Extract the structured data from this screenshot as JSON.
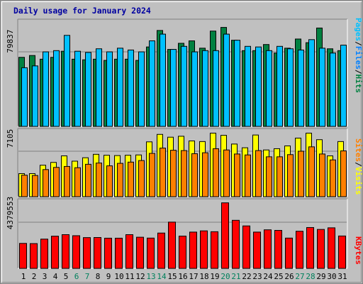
{
  "title": "Daily usage for January 2024",
  "colors": {
    "hits": "#008040",
    "files": "#00c0ff",
    "pages": "#00e0ff",
    "visits": "#ffff00",
    "sites": "#ff8000",
    "kbytes": "#ff0000",
    "weekend_label": "#00805c",
    "weekday_label": "#000000",
    "title": "#0000a0"
  },
  "chart_data": [
    {
      "type": "bar",
      "panel": "hits-files-pages",
      "y_max_label": "79837",
      "legend": [
        {
          "text": "Pages",
          "color": "#00c0ff"
        },
        {
          "text": "Files",
          "color": "#0080ff"
        },
        {
          "text": "Hits",
          "color": "#008040"
        }
      ],
      "categories": [
        "1",
        "2",
        "3",
        "4",
        "5",
        "6",
        "7",
        "8",
        "9",
        "10",
        "11",
        "12",
        "13",
        "14",
        "15",
        "16",
        "17",
        "18",
        "19",
        "20",
        "21",
        "22",
        "23",
        "24",
        "25",
        "26",
        "27",
        "28",
        "29",
        "30",
        "31"
      ],
      "series": [
        {
          "name": "Hits",
          "values": [
            56500,
            58000,
            55000,
            56500,
            61500,
            55000,
            54500,
            55000,
            54000,
            55000,
            55000,
            54000,
            65000,
            78500,
            63000,
            68000,
            70000,
            64000,
            78000,
            81000,
            70500,
            62000,
            62000,
            67000,
            60000,
            64000,
            71500,
            68500,
            80500,
            63500,
            62000
          ]
        },
        {
          "name": "Files",
          "values": [
            48000,
            49500,
            61000,
            62000,
            74500,
            61500,
            60500,
            63500,
            61000,
            64000,
            62500,
            61000,
            70000,
            75500,
            63000,
            65500,
            61000,
            62000,
            62000,
            75500,
            70500,
            65500,
            65000,
            62000,
            65500,
            63500,
            62500,
            71000,
            64000,
            60000,
            66500
          ]
        }
      ]
    },
    {
      "type": "bar",
      "panel": "visits-sites",
      "y_max_label": "7105",
      "legend": [
        {
          "text": "Sites",
          "color": "#ff8000"
        },
        {
          "text": "Visits",
          "color": "#ffff00"
        }
      ],
      "categories": [
        "1",
        "2",
        "3",
        "4",
        "5",
        "6",
        "7",
        "8",
        "9",
        "10",
        "11",
        "12",
        "13",
        "14",
        "15",
        "16",
        "17",
        "18",
        "19",
        "20",
        "21",
        "22",
        "23",
        "24",
        "25",
        "26",
        "27",
        "28",
        "29",
        "30",
        "31"
      ],
      "series": [
        {
          "name": "Visits",
          "values": [
            3700,
            3700,
            5050,
            5500,
            6550,
            5700,
            6250,
            6800,
            6650,
            6600,
            6650,
            6700,
            8800,
            10000,
            9550,
            9700,
            8950,
            8850,
            10200,
            9850,
            8450,
            7850,
            9900,
            7500,
            7700,
            8150,
            9400,
            10200,
            9150,
            6550,
            8850
          ]
        },
        {
          "name": "Sites",
          "values": [
            3450,
            3400,
            4350,
            4700,
            4850,
            4650,
            5200,
            5400,
            4950,
            5350,
            5550,
            5800,
            6950,
            7800,
            7450,
            7400,
            6900,
            7050,
            7700,
            7500,
            6850,
            6700,
            7400,
            6400,
            6400,
            6750,
            7300,
            8000,
            6850,
            5900,
            7350
          ]
        }
      ]
    },
    {
      "type": "bar",
      "panel": "kbytes",
      "y_max_label": "4379553",
      "legend": [
        {
          "text": "KBytes",
          "color": "#ff0000"
        }
      ],
      "categories": [
        "1",
        "2",
        "3",
        "4",
        "5",
        "6",
        "7",
        "8",
        "9",
        "10",
        "11",
        "12",
        "13",
        "14",
        "15",
        "16",
        "17",
        "18",
        "19",
        "20",
        "21",
        "22",
        "23",
        "24",
        "25",
        "26",
        "27",
        "28",
        "29",
        "30",
        "31"
      ],
      "series": [
        {
          "name": "KBytes",
          "values": [
            2630000,
            2610000,
            3080000,
            3390000,
            3550000,
            3440000,
            3240000,
            3250000,
            3180000,
            3180000,
            3550000,
            3280000,
            3190000,
            3720000,
            4870000,
            3400000,
            3820000,
            3950000,
            3860000,
            6900000,
            5060000,
            4470000,
            3820000,
            4060000,
            4000000,
            3190000,
            3910000,
            4300000,
            4100000,
            4270000,
            3410000
          ]
        }
      ]
    }
  ],
  "x_axis": {
    "labels": [
      "1",
      "2",
      "3",
      "4",
      "5",
      "6",
      "7",
      "8",
      "9",
      "10",
      "11",
      "12",
      "13",
      "14",
      "15",
      "16",
      "17",
      "18",
      "19",
      "20",
      "21",
      "22",
      "23",
      "24",
      "25",
      "26",
      "27",
      "28",
      "29",
      "30",
      "31"
    ],
    "weekend": [
      false,
      false,
      false,
      false,
      false,
      true,
      true,
      false,
      false,
      false,
      false,
      false,
      true,
      true,
      false,
      false,
      false,
      false,
      false,
      true,
      true,
      false,
      false,
      false,
      false,
      false,
      true,
      true,
      false,
      false,
      false
    ]
  }
}
